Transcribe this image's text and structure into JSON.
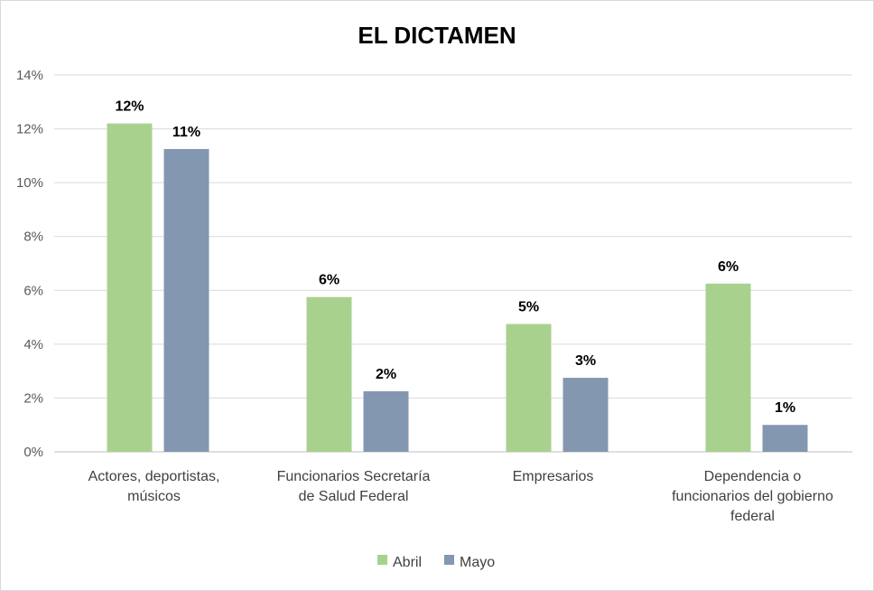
{
  "chart_data": {
    "type": "bar",
    "title": "EL DICTAMEN",
    "xlabel": "",
    "ylabel": "",
    "ylim": [
      0,
      14
    ],
    "yticks": [
      "0%",
      "2%",
      "4%",
      "6%",
      "8%",
      "10%",
      "12%",
      "14%"
    ],
    "grid": true,
    "legend_position": "bottom",
    "categories": [
      [
        "Actores, deportistas,",
        "músicos"
      ],
      [
        "Funcionarios Secretaría",
        "de Salud Federal"
      ],
      [
        "Empresarios"
      ],
      [
        "Dependencia o",
        "funcionarios del gobierno",
        "federal"
      ]
    ],
    "series": [
      {
        "name": "Abril",
        "color": "#a9d18e",
        "values": [
          12.2,
          5.75,
          4.75,
          6.25
        ],
        "labels": [
          "12%",
          "6%",
          "5%",
          "6%"
        ]
      },
      {
        "name": "Mayo",
        "color": "#8497b0",
        "values": [
          11.25,
          2.25,
          2.75,
          1.0
        ],
        "labels": [
          "11%",
          "2%",
          "3%",
          "1%"
        ]
      }
    ]
  }
}
